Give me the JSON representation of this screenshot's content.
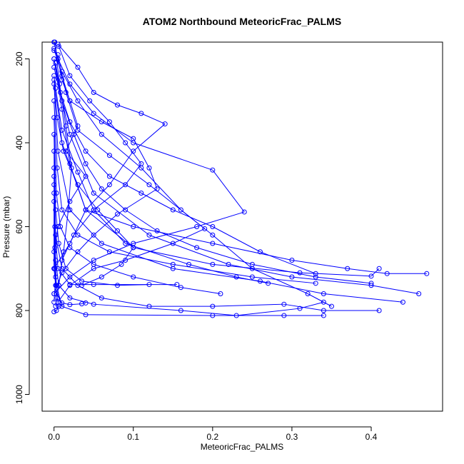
{
  "chart_data": {
    "type": "line",
    "title": "ATOM2 Northbound MeteoricFrac_PALMS",
    "xlabel": "MeteoricFrac_PALMS",
    "ylabel": "Pressure (mbar)",
    "xlim": [
      -0.015,
      0.49
    ],
    "ylim": [
      1040,
      160
    ],
    "y_reversed": true,
    "x_ticks": [
      0.0,
      0.1,
      0.2,
      0.3,
      0.4
    ],
    "x_tick_labels": [
      "0.0",
      "0.1",
      "0.2",
      "0.3",
      "0.4"
    ],
    "y_ticks": [
      200,
      400,
      600,
      800,
      1000
    ],
    "y_tick_labels": [
      "200",
      "400",
      "600",
      "800",
      "1000"
    ],
    "color": "#0000ff",
    "marker": "open-circle",
    "grid": false,
    "legend": "none",
    "series": [
      {
        "x": [
          0.0,
          0.005,
          0.01,
          0.02,
          0.03,
          0.015,
          0.04,
          0.02,
          0.005,
          0.0,
          0.002,
          0.0
        ],
        "y": [
          160,
          200,
          250,
          300,
          360,
          420,
          480,
          540,
          600,
          660,
          720,
          780
        ]
      },
      {
        "x": [
          0.005,
          0.03,
          0.05,
          0.08,
          0.11,
          0.14,
          0.1,
          0.07,
          0.04,
          0.02,
          0.0
        ],
        "y": [
          165,
          220,
          280,
          310,
          330,
          355,
          420,
          500,
          560,
          640,
          700
        ]
      },
      {
        "x": [
          0.0,
          0.01,
          0.02,
          0.06,
          0.1,
          0.12,
          0.13,
          0.08,
          0.05,
          0.03,
          0.01,
          0.0
        ],
        "y": [
          175,
          240,
          300,
          350,
          390,
          460,
          510,
          570,
          620,
          660,
          710,
          760
        ]
      },
      {
        "x": [
          0.0,
          0.02,
          0.05,
          0.1,
          0.2,
          0.24,
          0.18,
          0.1,
          0.05,
          0.02,
          0.0
        ],
        "y": [
          180,
          260,
          330,
          400,
          465,
          565,
          600,
          640,
          680,
          720,
          760
        ]
      },
      {
        "x": [
          0.005,
          0.015,
          0.03,
          0.07,
          0.12,
          0.19,
          0.15,
          0.09,
          0.05,
          0.02,
          0.005
        ],
        "y": [
          190,
          280,
          370,
          430,
          500,
          605,
          640,
          680,
          700,
          740,
          780
        ]
      },
      {
        "x": [
          0.0,
          0.01,
          0.02,
          0.04,
          0.1,
          0.2,
          0.3,
          0.37,
          0.42,
          0.47
        ],
        "y": [
          200,
          320,
          450,
          560,
          600,
          640,
          680,
          700,
          712,
          712
        ]
      },
      {
        "x": [
          0.0,
          0.02,
          0.05,
          0.12,
          0.22,
          0.3,
          0.4,
          0.46
        ],
        "y": [
          220,
          380,
          520,
          620,
          690,
          720,
          740,
          760
        ]
      },
      {
        "x": [
          0.0,
          0.01,
          0.04,
          0.1,
          0.2,
          0.31,
          0.4,
          0.41
        ],
        "y": [
          240,
          400,
          560,
          650,
          690,
          710,
          718,
          700
        ]
      },
      {
        "x": [
          0.0,
          0.005,
          0.02,
          0.06,
          0.15,
          0.26,
          0.34,
          0.44
        ],
        "y": [
          260,
          420,
          560,
          640,
          700,
          730,
          760,
          780
        ]
      },
      {
        "x": [
          0.01,
          0.03,
          0.06,
          0.11,
          0.16,
          0.2,
          0.25,
          0.32,
          0.35
        ],
        "y": [
          230,
          300,
          380,
          460,
          560,
          620,
          700,
          760,
          790
        ]
      },
      {
        "x": [
          0.0,
          0.004,
          0.01,
          0.03,
          0.07,
          0.15,
          0.25,
          0.33
        ],
        "y": [
          300,
          460,
          560,
          620,
          660,
          690,
          720,
          735
        ]
      },
      {
        "x": [
          0.0,
          0.003,
          0.008,
          0.02,
          0.05,
          0.1,
          0.16,
          0.21
        ],
        "y": [
          340,
          520,
          600,
          650,
          690,
          720,
          745,
          760
        ]
      },
      {
        "x": [
          0.0,
          0.002,
          0.006,
          0.015,
          0.035,
          0.08,
          0.12
        ],
        "y": [
          380,
          560,
          640,
          700,
          730,
          740,
          738
        ]
      },
      {
        "x": [
          0.0,
          0.001,
          0.005,
          0.02,
          0.05,
          0.155
        ],
        "y": [
          420,
          600,
          700,
          738,
          738,
          738
        ]
      },
      {
        "x": [
          0.0,
          0.002,
          0.01,
          0.03,
          0.06,
          0.12,
          0.2,
          0.29,
          0.34,
          0.41
        ],
        "y": [
          460,
          620,
          700,
          740,
          770,
          790,
          790,
          785,
          800,
          800
        ]
      },
      {
        "x": [
          0.0,
          0.001,
          0.003,
          0.01,
          0.04,
          0.2,
          0.29,
          0.34
        ],
        "y": [
          480,
          650,
          740,
          790,
          810,
          812,
          812,
          812
        ]
      },
      {
        "x": [
          0.0,
          0.002,
          0.006,
          0.02,
          0.05,
          0.16,
          0.23,
          0.31,
          0.34
        ],
        "y": [
          500,
          680,
          740,
          770,
          785,
          800,
          812,
          795,
          780
        ]
      },
      {
        "x": [
          0.0,
          0.001,
          0.003,
          0.01,
          0.02,
          0.035,
          0.04
        ],
        "y": [
          520,
          700,
          760,
          782,
          786,
          784,
          782
        ]
      },
      {
        "x": [
          0.0,
          0.0,
          0.002,
          0.004,
          0.006,
          0.003,
          0.0
        ],
        "y": [
          540,
          700,
          740,
          770,
          790,
          800,
          803
        ]
      },
      {
        "x": [
          0.002,
          0.01,
          0.03,
          0.05,
          0.09,
          0.17,
          0.23,
          0.27
        ],
        "y": [
          270,
          370,
          470,
          560,
          640,
          690,
          720,
          735
        ]
      },
      {
        "x": [
          0.0,
          0.008,
          0.02,
          0.04,
          0.07,
          0.11,
          0.15,
          0.2,
          0.26,
          0.33
        ],
        "y": [
          200,
          280,
          350,
          420,
          480,
          520,
          560,
          600,
          660,
          712
        ]
      },
      {
        "x": [
          0.006,
          0.02,
          0.045,
          0.07,
          0.09,
          0.11,
          0.09,
          0.05,
          0.025,
          0.01
        ],
        "y": [
          170,
          240,
          300,
          350,
          400,
          450,
          500,
          560,
          620,
          680
        ]
      },
      {
        "x": [
          0.002,
          0.01,
          0.025,
          0.04,
          0.06,
          0.09,
          0.13,
          0.18,
          0.25,
          0.33,
          0.4
        ],
        "y": [
          210,
          300,
          380,
          450,
          510,
          560,
          610,
          650,
          690,
          720,
          735
        ]
      },
      {
        "x": [
          0.0,
          0.004,
          0.012,
          0.03,
          0.055,
          0.08,
          0.1,
          0.085,
          0.06,
          0.035
        ],
        "y": [
          250,
          340,
          420,
          500,
          560,
          610,
          650,
          690,
          720,
          740
        ]
      },
      {
        "x": [
          0.001,
          0.007,
          0.015,
          0.022,
          0.018,
          0.012,
          0.006,
          0.002
        ],
        "y": [
          160,
          260,
          360,
          460,
          560,
          660,
          740,
          790
        ]
      }
    ]
  }
}
